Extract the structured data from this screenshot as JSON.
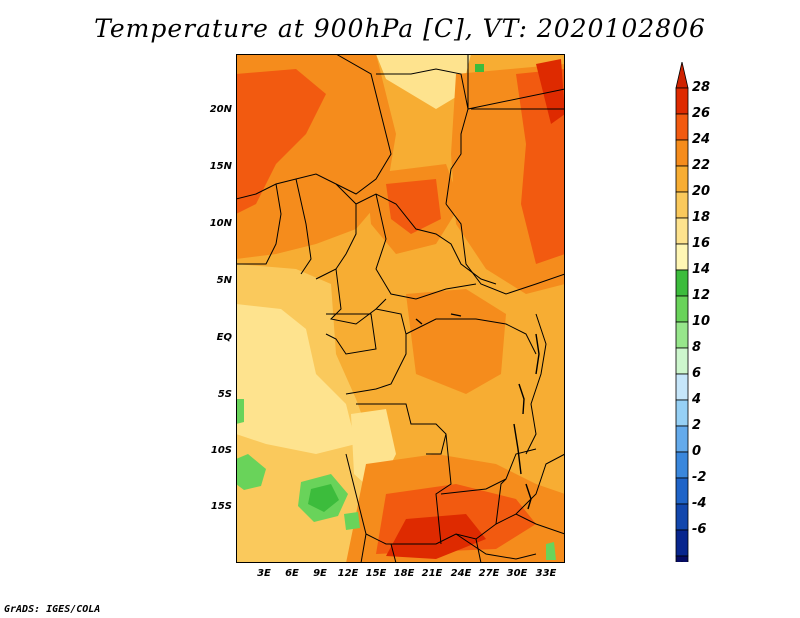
{
  "title": "Temperature at 900hPa [C], VT: 2020102806",
  "credit": "GrADS: IGES/COLA",
  "map": {
    "variable": "Temperature",
    "level": "900hPa",
    "units": "C",
    "lat_labels": [
      "20N",
      "15N",
      "10N",
      "5N",
      "EQ",
      "5S",
      "10S",
      "15S"
    ],
    "lon_labels": [
      "3E",
      "6E",
      "9E",
      "12E",
      "15E",
      "18E",
      "21E",
      "24E",
      "27E",
      "30E",
      "33E"
    ]
  },
  "colorbar": {
    "labels": [
      "28",
      "26",
      "24",
      "22",
      "20",
      "18",
      "16",
      "14",
      "12",
      "10",
      "8",
      "6",
      "4",
      "2",
      "0",
      "-2",
      "-4",
      "-6"
    ],
    "colors": [
      "#de2a00",
      "#f25a10",
      "#f58c1c",
      "#f7ad33",
      "#fac95c",
      "#fee38e",
      "#fff6b4",
      "#3cbc3c",
      "#69d35a",
      "#97e68b",
      "#cdf6cd",
      "#c6e6fa",
      "#96d0f5",
      "#64aaeb",
      "#3a87dc",
      "#1f64c8",
      "#1247ad",
      "#08268e",
      "#060c64"
    ],
    "over_color": "#cf2200",
    "under_color": "#d8d8f5"
  }
}
